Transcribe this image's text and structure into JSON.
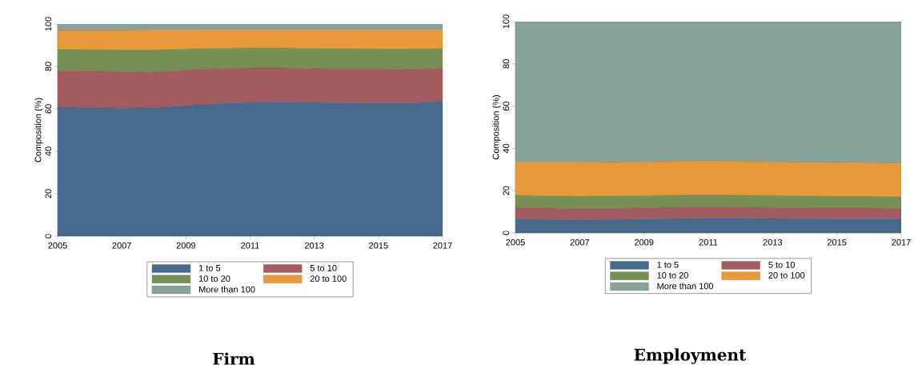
{
  "chart_data": [
    {
      "type": "area",
      "title": "Firm",
      "ylabel": "Composition (%)",
      "stacked": true,
      "legend": "bottom",
      "x": [
        2005,
        2006,
        2007,
        2008,
        2009,
        2010,
        2011,
        2012,
        2013,
        2014,
        2015,
        2016,
        2017
      ],
      "xlim": [
        2005,
        2017
      ],
      "xticks": [
        2005,
        2007,
        2009,
        2011,
        2013,
        2015,
        2017
      ],
      "ylim": [
        0,
        100
      ],
      "yticks": [
        0,
        20,
        40,
        60,
        80,
        100
      ],
      "series": [
        {
          "name": "1 to 5",
          "color": "#48698b",
          "values": [
            61,
            60.5,
            60.3,
            60.5,
            61.5,
            62.5,
            63,
            63.3,
            63,
            62.8,
            62.7,
            62.7,
            63.5
          ]
        },
        {
          "name": "5 to 10",
          "color": "#a45c60",
          "values": [
            17,
            17.3,
            17.2,
            16.8,
            16.8,
            16.5,
            16.2,
            15.9,
            15.9,
            16,
            16.1,
            15.8,
            15.7
          ]
        },
        {
          "name": "10 to 20",
          "color": "#768f55",
          "values": [
            10,
            10,
            10.2,
            10.4,
            9.9,
            9.5,
            9.5,
            9.5,
            9.5,
            9.5,
            9.4,
            9.7,
            9.1
          ]
        },
        {
          "name": "20 to 100",
          "color": "#e8993a",
          "values": [
            9,
            9.2,
            9.3,
            9.5,
            9,
            8.8,
            8.6,
            8.6,
            8.9,
            9,
            9.1,
            9.1,
            9
          ]
        },
        {
          "name": "More than 100",
          "color": "#8aa39a",
          "values": [
            3,
            3,
            3,
            2.8,
            2.8,
            2.7,
            2.7,
            2.7,
            2.7,
            2.7,
            2.7,
            2.7,
            2.7
          ]
        }
      ]
    },
    {
      "type": "area",
      "title": "Employment",
      "ylabel": "Composition (%)",
      "stacked": true,
      "legend": "bottom",
      "x": [
        2005,
        2006,
        2007,
        2008,
        2009,
        2010,
        2011,
        2012,
        2013,
        2014,
        2015,
        2016,
        2017
      ],
      "xlim": [
        2005,
        2017
      ],
      "xticks": [
        2005,
        2007,
        2009,
        2011,
        2013,
        2015,
        2017
      ],
      "ylim": [
        0,
        100
      ],
      "yticks": [
        0,
        20,
        40,
        60,
        80,
        100
      ],
      "series": [
        {
          "name": "1 to 5",
          "color": "#48698b",
          "values": [
            6.5,
            6.3,
            6.2,
            6.3,
            6.5,
            6.8,
            7,
            7,
            6.8,
            6.7,
            6.6,
            6.6,
            6.5
          ]
        },
        {
          "name": "5 to 10",
          "color": "#a45c60",
          "values": [
            5.5,
            5.4,
            5.3,
            5.2,
            5.3,
            5.4,
            5.3,
            5.2,
            5.2,
            5.1,
            5.1,
            5.1,
            5
          ]
        },
        {
          "name": "10 to 20",
          "color": "#768f55",
          "values": [
            5.8,
            5.8,
            5.8,
            6,
            5.8,
            5.6,
            5.7,
            5.6,
            5.7,
            5.7,
            5.6,
            5.6,
            5.5
          ]
        },
        {
          "name": "20 to 100",
          "color": "#e8993a",
          "values": [
            15.7,
            16,
            16.2,
            15.8,
            15.9,
            16,
            16,
            16,
            15.8,
            15.7,
            16,
            15.8,
            15.8
          ]
        },
        {
          "name": "More than 100",
          "color": "#8aa39a",
          "values": [
            66.5,
            66.5,
            66.5,
            66.7,
            66.5,
            66.2,
            66,
            66.2,
            66.5,
            66.8,
            66.7,
            66.9,
            67.2
          ]
        }
      ]
    }
  ]
}
